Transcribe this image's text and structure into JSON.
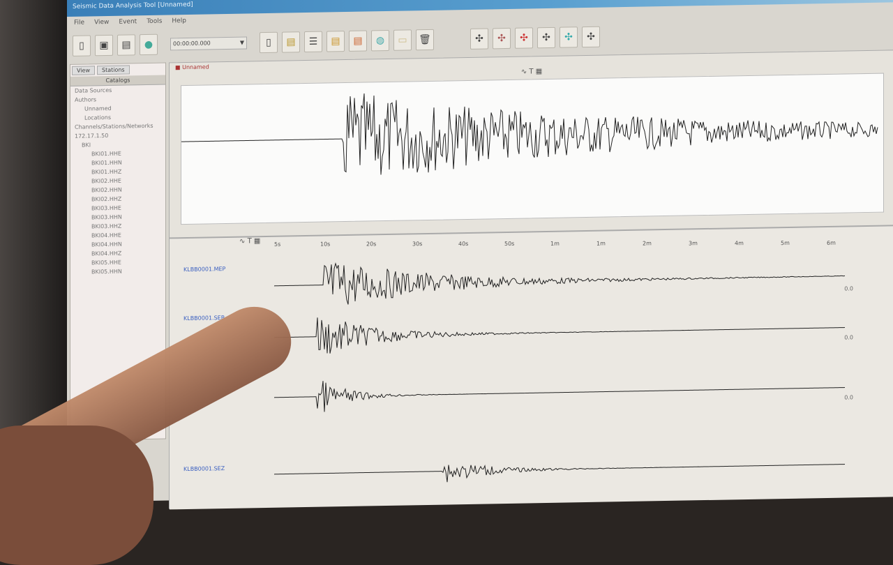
{
  "window": {
    "title": "Seismic Data Analysis Tool [Unnamed]"
  },
  "menu": [
    "File",
    "View",
    "Event",
    "Tools",
    "Help"
  ],
  "toolbar": {
    "time_value": "00:00:00.000",
    "icons": [
      "new-icon",
      "open-icon",
      "save-icon",
      "globe-icon",
      "page-icon",
      "doc-icon",
      "list-icon",
      "folder-icon",
      "archive-icon",
      "earth-icon",
      "note-icon",
      "trash-icon",
      "wave1-icon",
      "wave2-icon",
      "wave3-icon",
      "wave4-icon",
      "wave5-icon",
      "wave6-icon"
    ]
  },
  "left_panel": {
    "tabs": [
      "View",
      "Stations"
    ],
    "header": "Catalogs",
    "tree": [
      "Data Sources",
      "Authors",
      "Unnamed",
      "Locations",
      "Channels/Stations/Networks",
      "172.17.1.50",
      "BKI",
      "BKI01.HHE",
      "BKI01.HHN",
      "BKI01.HHZ",
      "BKI02.HHE",
      "BKI02.HHN",
      "BKI02.HHZ",
      "BKI03.HHE",
      "BKI03.HHN",
      "BKI03.HHZ",
      "BKI04.HHE",
      "BKI04.HHN",
      "BKI04.HHZ",
      "BKI05.HHE",
      "BKI05.HHN"
    ]
  },
  "document": {
    "tab": "Unnamed"
  },
  "ruler": {
    "ticks": [
      "5s",
      "10s",
      "20s",
      "30s",
      "40s",
      "50s",
      "1m",
      "1m",
      "2m",
      "3m",
      "4m",
      "5m",
      "6m"
    ]
  },
  "traces": [
    {
      "label": "KLBB0001.MEP",
      "scale": "0.0"
    },
    {
      "label": "KLBB0001.SEB",
      "scale": "0.0"
    },
    {
      "label": "",
      "scale": "0.0"
    },
    {
      "label": "KLBB0001.SEZ",
      "scale": ""
    }
  ]
}
